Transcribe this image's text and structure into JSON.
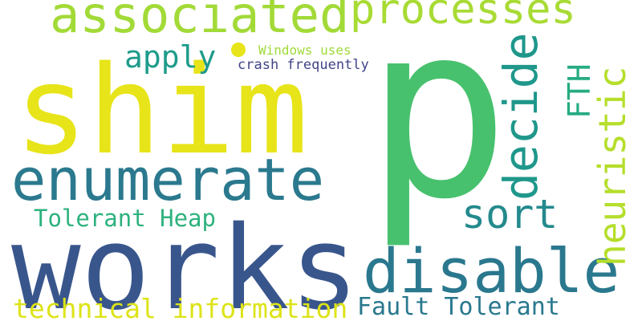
{
  "background": "#ffffff",
  "words": [
    {
      "text": "p",
      "color": "#48c16e"
    },
    {
      "text": "shim",
      "color": "#e7e419"
    },
    {
      "text": "works",
      "color": "#39568c"
    },
    {
      "text": "enumerate",
      "color": "#2b798e"
    },
    {
      "text": "disable",
      "color": "#2a788e"
    },
    {
      "text": "associated",
      "color": "#a2da37"
    },
    {
      "text": "processes",
      "color": "#a8db34"
    },
    {
      "text": "decide",
      "color": "#1f978b"
    },
    {
      "text": "heuristic",
      "color": "#b5de2b"
    },
    {
      "text": "sort",
      "color": "#238a8d"
    },
    {
      "text": "apply",
      "color": "#1e9b8a"
    },
    {
      "text": "FTH",
      "color": "#25ab82"
    },
    {
      "text": "Tolerant Heap",
      "color": "#2db27d"
    },
    {
      "text": "technical information",
      "color": "#dde318"
    },
    {
      "text": "Fault Tolerant",
      "color": "#29788e"
    },
    {
      "text": "Windows uses",
      "color": "#a0da39"
    },
    {
      "text": "crash frequently",
      "color": "#414487"
    }
  ]
}
